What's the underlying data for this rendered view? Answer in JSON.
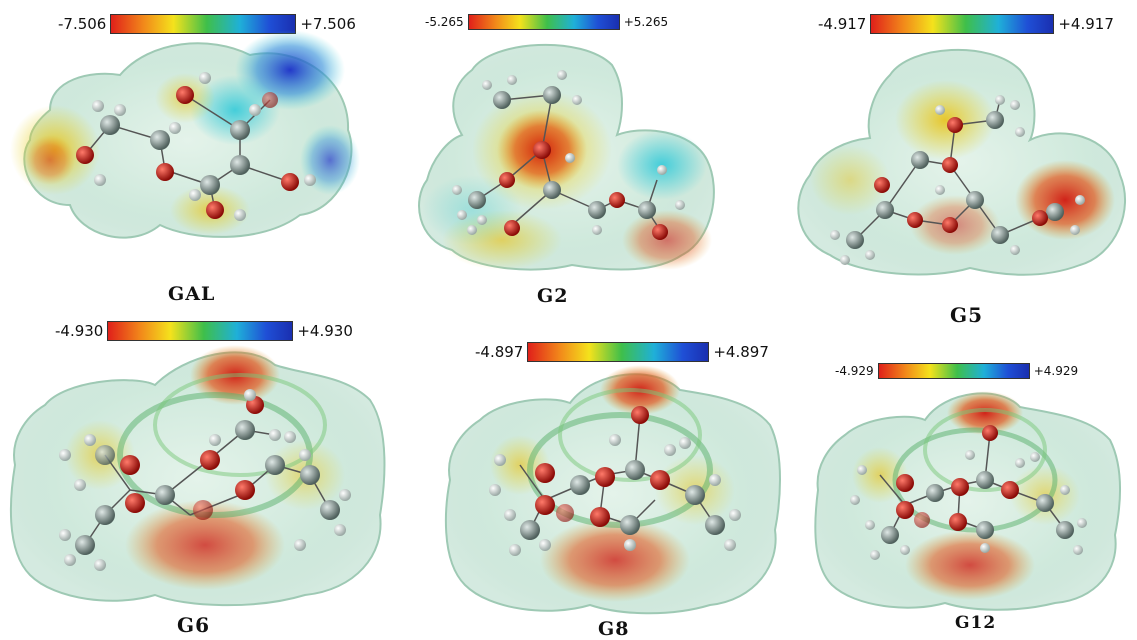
{
  "panels": [
    {
      "label": "GAL",
      "min": "-7.506",
      "max": "+7.506"
    },
    {
      "label": "G2",
      "min": "-5.265",
      "max": "+5.265"
    },
    {
      "label": "G5",
      "min": "-4.917",
      "max": "+4.917"
    },
    {
      "label": "G6",
      "min": "-4.930",
      "max": "+4.930"
    },
    {
      "label": "G8",
      "min": "-4.897",
      "max": "+4.897"
    },
    {
      "label": "G12",
      "min": "-4.929",
      "max": "+4.929"
    }
  ],
  "colors": {
    "negative": "#e0201a",
    "neutral": "#3fbf4a",
    "positive": "#1a2fb0",
    "surface": "#cfe9dc",
    "carbon": "#7a8a86",
    "oxygen": "#c81a14",
    "hydrogen": "#e6ecea"
  }
}
